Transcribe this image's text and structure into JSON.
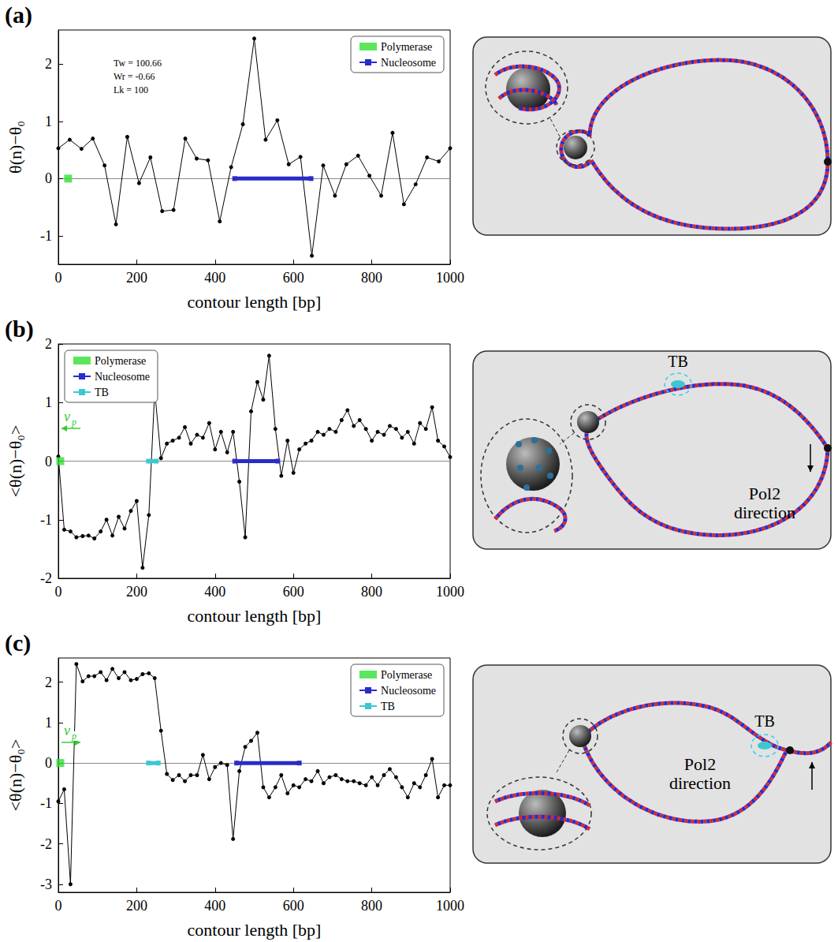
{
  "chart_data": [
    {
      "panel": "(a)",
      "type": "line",
      "x_label": "contour length [bp]",
      "y_label": "θ(n)−θ₀",
      "xlim": [
        0,
        1000
      ],
      "xticks": [
        0,
        200,
        400,
        600,
        800,
        1000
      ],
      "ylim": [
        -1.5,
        2.6
      ],
      "yticks": [
        -1,
        0,
        1,
        2
      ],
      "legend": "top-right",
      "annotations": [
        {
          "text": "Tw = 100.66"
        },
        {
          "text": "Wr = -0.66"
        },
        {
          "text": "Lk = 100"
        }
      ],
      "series": [
        {
          "type": "line",
          "marker": "circle",
          "color": "#000000",
          "x": [
            0,
            29,
            59,
            88,
            118,
            147,
            176,
            206,
            235,
            265,
            294,
            324,
            353,
            382,
            412,
            441,
            471,
            500,
            529,
            559,
            588,
            618,
            647,
            676,
            706,
            735,
            765,
            794,
            824,
            853,
            882,
            912,
            941,
            971,
            1000
          ],
          "values": [
            0.53,
            0.68,
            0.52,
            0.7,
            0.23,
            -0.8,
            0.73,
            -0.08,
            0.37,
            -0.57,
            -0.55,
            0.7,
            0.35,
            0.32,
            -0.75,
            0.2,
            0.95,
            2.45,
            0.68,
            1.02,
            0.25,
            0.38,
            -1.35,
            0.23,
            -0.3,
            0.25,
            0.4,
            0.05,
            -0.3,
            0.8,
            -0.45,
            -0.1,
            0.37,
            0.3,
            0.53
          ]
        },
        {
          "name": "Polymerase",
          "type": "scatter",
          "marker": "square",
          "color": "#33e033",
          "x": [
            25
          ],
          "values": [
            0
          ]
        },
        {
          "name": "Nucleosome",
          "type": "line",
          "marker": "square",
          "color": "#2b2bc8",
          "x": [
            450,
            645
          ],
          "values": [
            0,
            0
          ]
        }
      ]
    },
    {
      "panel": "(b)",
      "type": "line",
      "x_label": "contour length [bp]",
      "y_label": "<θ(n)−θ₀>",
      "xlim": [
        0,
        1000
      ],
      "xticks": [
        0,
        200,
        400,
        600,
        800,
        1000
      ],
      "ylim": [
        -2,
        2
      ],
      "yticks": [
        -2,
        -1,
        0,
        1,
        2
      ],
      "legend": "top-left",
      "annotations": [
        {
          "text": "v",
          "subscript": "p",
          "arrow": "left"
        }
      ],
      "illustration": {
        "labels": [
          "TB",
          "Pol2 direction"
        ]
      },
      "series": [
        {
          "type": "line",
          "marker": "circle",
          "color": "#000000",
          "x": [
            0,
            15,
            31,
            46,
            62,
            77,
            92,
            108,
            123,
            138,
            154,
            169,
            185,
            200,
            215,
            231,
            246,
            262,
            277,
            292,
            308,
            323,
            338,
            354,
            369,
            385,
            400,
            415,
            431,
            446,
            462,
            477,
            492,
            508,
            523,
            538,
            554,
            569,
            585,
            600,
            615,
            631,
            646,
            662,
            677,
            692,
            708,
            723,
            738,
            754,
            769,
            785,
            800,
            815,
            831,
            846,
            862,
            877,
            892,
            908,
            923,
            938,
            954,
            969,
            985,
            1000
          ],
          "values": [
            0.08,
            -1.17,
            -1.2,
            -1.3,
            -1.28,
            -1.27,
            -1.32,
            -1.2,
            -1.0,
            -1.27,
            -0.95,
            -1.15,
            -0.85,
            -0.68,
            -1.82,
            -0.92,
            1.2,
            0.05,
            0.3,
            0.35,
            0.4,
            0.58,
            0.3,
            0.45,
            0.4,
            0.65,
            0.2,
            0.5,
            0.15,
            0.5,
            -0.35,
            -1.3,
            0.85,
            1.35,
            1.05,
            1.8,
            0.55,
            -0.25,
            0.35,
            -0.2,
            0.2,
            0.3,
            0.35,
            0.5,
            0.45,
            0.55,
            0.5,
            0.7,
            0.87,
            0.6,
            0.7,
            0.55,
            0.35,
            0.5,
            0.45,
            0.6,
            0.55,
            0.4,
            0.5,
            0.3,
            0.65,
            0.55,
            0.92,
            0.35,
            0.25,
            0.07
          ]
        },
        {
          "name": "Polymerase",
          "type": "scatter",
          "marker": "square",
          "color": "#33e033",
          "x": [
            5
          ],
          "values": [
            0
          ]
        },
        {
          "name": "Nucleosome",
          "type": "line",
          "marker": "square",
          "color": "#2b2bc8",
          "x": [
            450,
            560
          ],
          "values": [
            0,
            0
          ]
        },
        {
          "name": "TB",
          "type": "line",
          "marker": "square",
          "color": "#3cc8d2",
          "x": [
            230,
            250
          ],
          "values": [
            0,
            0
          ]
        }
      ]
    },
    {
      "panel": "(c)",
      "type": "line",
      "x_label": "contour length [bp]",
      "y_label": "<θ(n)−θ₀>",
      "xlim": [
        0,
        1000
      ],
      "xticks": [
        0,
        200,
        400,
        600,
        800,
        1000
      ],
      "ylim": [
        -3.2,
        2.6
      ],
      "yticks": [
        -3,
        -2,
        -1,
        0,
        1,
        2
      ],
      "legend": "top-right",
      "annotations": [
        {
          "text": "v",
          "subscript": "p",
          "arrow": "right"
        }
      ],
      "illustration": {
        "labels": [
          "TB",
          "Pol2 direction"
        ]
      },
      "series": [
        {
          "type": "line",
          "marker": "circle",
          "color": "#000000",
          "x": [
            0,
            15,
            31,
            46,
            62,
            77,
            92,
            108,
            123,
            138,
            154,
            169,
            185,
            200,
            215,
            231,
            246,
            262,
            277,
            292,
            308,
            323,
            338,
            354,
            369,
            385,
            400,
            415,
            431,
            446,
            462,
            477,
            492,
            508,
            523,
            538,
            554,
            569,
            585,
            600,
            615,
            631,
            646,
            662,
            677,
            692,
            708,
            723,
            738,
            754,
            769,
            785,
            800,
            815,
            831,
            846,
            862,
            877,
            892,
            908,
            923,
            938,
            954,
            969,
            985,
            1000
          ],
          "values": [
            -0.95,
            -0.65,
            -3.0,
            2.45,
            2.02,
            2.15,
            2.15,
            2.25,
            2.05,
            2.33,
            2.1,
            2.25,
            2.05,
            2.08,
            2.2,
            2.22,
            2.1,
            0.8,
            -0.27,
            -0.42,
            -0.3,
            -0.45,
            -0.3,
            -0.3,
            0.2,
            -0.4,
            -0.1,
            0.0,
            -0.05,
            -1.88,
            -0.2,
            0.4,
            0.55,
            0.75,
            -0.6,
            -0.85,
            -0.6,
            -0.3,
            -0.75,
            -0.55,
            -0.6,
            -0.4,
            -0.45,
            -0.2,
            -0.5,
            -0.35,
            -0.3,
            -0.4,
            -0.45,
            -0.45,
            -0.5,
            -0.55,
            -0.35,
            -0.55,
            -0.3,
            -0.15,
            -0.35,
            -0.6,
            -0.85,
            -0.5,
            -0.6,
            -0.3,
            0.1,
            -0.85,
            -0.55,
            -0.55
          ]
        },
        {
          "name": "Polymerase",
          "type": "scatter",
          "marker": "square",
          "color": "#33e033",
          "x": [
            5
          ],
          "values": [
            0
          ]
        },
        {
          "name": "Nucleosome",
          "type": "line",
          "marker": "square",
          "color": "#2b2bc8",
          "x": [
            455,
            615
          ],
          "values": [
            0,
            0
          ]
        },
        {
          "name": "TB",
          "type": "line",
          "marker": "square",
          "color": "#3cc8d2",
          "x": [
            230,
            255
          ],
          "values": [
            0,
            0
          ]
        }
      ]
    }
  ]
}
